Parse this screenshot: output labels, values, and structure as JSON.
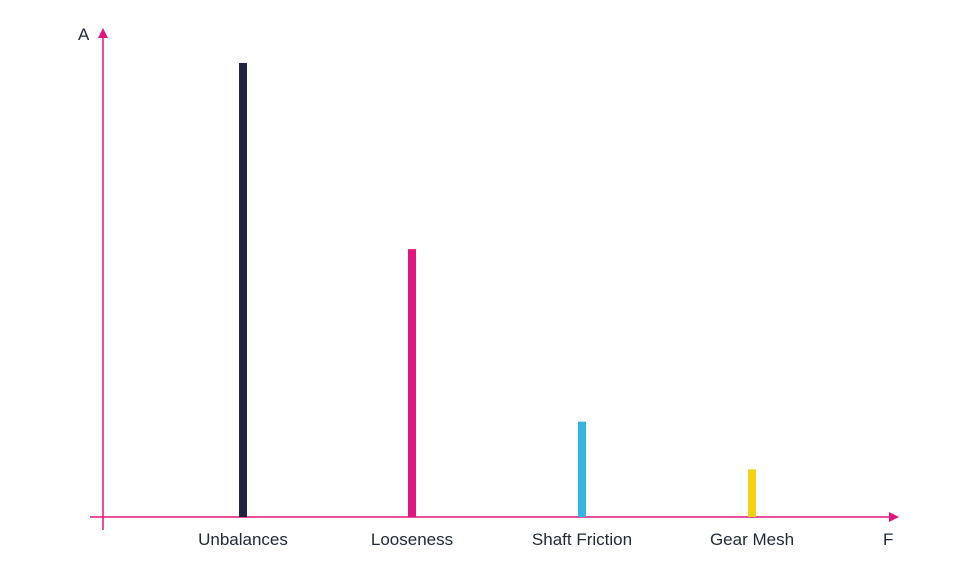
{
  "chart_data": {
    "type": "bar",
    "title": "",
    "ylabel": "A",
    "xlabel": "F",
    "categories": [
      "Unbalances",
      "Looseness",
      "Shaft Friction",
      "Gear Mesh"
    ],
    "series": [
      {
        "values": [
          100,
          59,
          21,
          10.5
        ],
        "colors": [
          "#1c2541",
          "#e0157e",
          "#36b3e0",
          "#f5d20f"
        ]
      }
    ],
    "ylim": [
      0,
      100
    ],
    "grid": false,
    "legend": "none",
    "axis_color": "#e0157e"
  }
}
